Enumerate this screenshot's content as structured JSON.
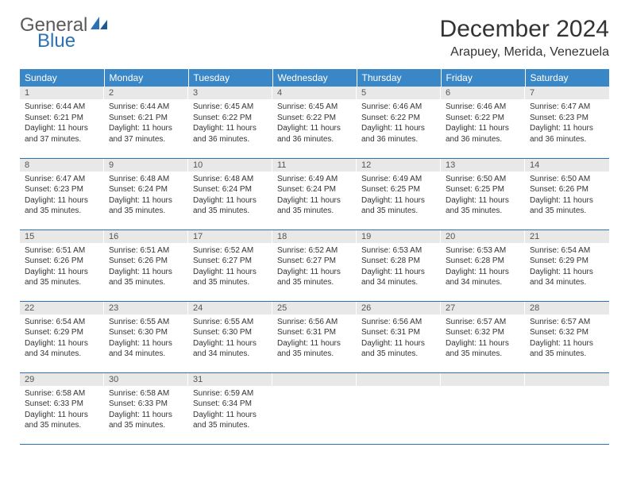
{
  "brand": {
    "word1": "General",
    "word2": "Blue",
    "iconColor": "#2a71b8"
  },
  "title": "December 2024",
  "location": "Arapuey, Merida, Venezuela",
  "colors": {
    "headerBg": "#3a87c7",
    "headerText": "#ffffff",
    "dayNumBg": "#e8e8e8",
    "borderBlue": "#2a71b8",
    "textColor": "#333333"
  },
  "dayNames": [
    "Sunday",
    "Monday",
    "Tuesday",
    "Wednesday",
    "Thursday",
    "Friday",
    "Saturday"
  ],
  "weeks": [
    [
      {
        "n": "1",
        "sr": "6:44 AM",
        "ss": "6:21 PM",
        "dl": "11 hours and 37 minutes."
      },
      {
        "n": "2",
        "sr": "6:44 AM",
        "ss": "6:21 PM",
        "dl": "11 hours and 37 minutes."
      },
      {
        "n": "3",
        "sr": "6:45 AM",
        "ss": "6:22 PM",
        "dl": "11 hours and 36 minutes."
      },
      {
        "n": "4",
        "sr": "6:45 AM",
        "ss": "6:22 PM",
        "dl": "11 hours and 36 minutes."
      },
      {
        "n": "5",
        "sr": "6:46 AM",
        "ss": "6:22 PM",
        "dl": "11 hours and 36 minutes."
      },
      {
        "n": "6",
        "sr": "6:46 AM",
        "ss": "6:22 PM",
        "dl": "11 hours and 36 minutes."
      },
      {
        "n": "7",
        "sr": "6:47 AM",
        "ss": "6:23 PM",
        "dl": "11 hours and 36 minutes."
      }
    ],
    [
      {
        "n": "8",
        "sr": "6:47 AM",
        "ss": "6:23 PM",
        "dl": "11 hours and 35 minutes."
      },
      {
        "n": "9",
        "sr": "6:48 AM",
        "ss": "6:24 PM",
        "dl": "11 hours and 35 minutes."
      },
      {
        "n": "10",
        "sr": "6:48 AM",
        "ss": "6:24 PM",
        "dl": "11 hours and 35 minutes."
      },
      {
        "n": "11",
        "sr": "6:49 AM",
        "ss": "6:24 PM",
        "dl": "11 hours and 35 minutes."
      },
      {
        "n": "12",
        "sr": "6:49 AM",
        "ss": "6:25 PM",
        "dl": "11 hours and 35 minutes."
      },
      {
        "n": "13",
        "sr": "6:50 AM",
        "ss": "6:25 PM",
        "dl": "11 hours and 35 minutes."
      },
      {
        "n": "14",
        "sr": "6:50 AM",
        "ss": "6:26 PM",
        "dl": "11 hours and 35 minutes."
      }
    ],
    [
      {
        "n": "15",
        "sr": "6:51 AM",
        "ss": "6:26 PM",
        "dl": "11 hours and 35 minutes."
      },
      {
        "n": "16",
        "sr": "6:51 AM",
        "ss": "6:26 PM",
        "dl": "11 hours and 35 minutes."
      },
      {
        "n": "17",
        "sr": "6:52 AM",
        "ss": "6:27 PM",
        "dl": "11 hours and 35 minutes."
      },
      {
        "n": "18",
        "sr": "6:52 AM",
        "ss": "6:27 PM",
        "dl": "11 hours and 35 minutes."
      },
      {
        "n": "19",
        "sr": "6:53 AM",
        "ss": "6:28 PM",
        "dl": "11 hours and 34 minutes."
      },
      {
        "n": "20",
        "sr": "6:53 AM",
        "ss": "6:28 PM",
        "dl": "11 hours and 34 minutes."
      },
      {
        "n": "21",
        "sr": "6:54 AM",
        "ss": "6:29 PM",
        "dl": "11 hours and 34 minutes."
      }
    ],
    [
      {
        "n": "22",
        "sr": "6:54 AM",
        "ss": "6:29 PM",
        "dl": "11 hours and 34 minutes."
      },
      {
        "n": "23",
        "sr": "6:55 AM",
        "ss": "6:30 PM",
        "dl": "11 hours and 34 minutes."
      },
      {
        "n": "24",
        "sr": "6:55 AM",
        "ss": "6:30 PM",
        "dl": "11 hours and 34 minutes."
      },
      {
        "n": "25",
        "sr": "6:56 AM",
        "ss": "6:31 PM",
        "dl": "11 hours and 35 minutes."
      },
      {
        "n": "26",
        "sr": "6:56 AM",
        "ss": "6:31 PM",
        "dl": "11 hours and 35 minutes."
      },
      {
        "n": "27",
        "sr": "6:57 AM",
        "ss": "6:32 PM",
        "dl": "11 hours and 35 minutes."
      },
      {
        "n": "28",
        "sr": "6:57 AM",
        "ss": "6:32 PM",
        "dl": "11 hours and 35 minutes."
      }
    ],
    [
      {
        "n": "29",
        "sr": "6:58 AM",
        "ss": "6:33 PM",
        "dl": "11 hours and 35 minutes."
      },
      {
        "n": "30",
        "sr": "6:58 AM",
        "ss": "6:33 PM",
        "dl": "11 hours and 35 minutes."
      },
      {
        "n": "31",
        "sr": "6:59 AM",
        "ss": "6:34 PM",
        "dl": "11 hours and 35 minutes."
      },
      {
        "n": "",
        "empty": true
      },
      {
        "n": "",
        "empty": true
      },
      {
        "n": "",
        "empty": true
      },
      {
        "n": "",
        "empty": true
      }
    ]
  ],
  "labels": {
    "sunrise": "Sunrise:",
    "sunset": "Sunset:",
    "daylight": "Daylight:"
  }
}
